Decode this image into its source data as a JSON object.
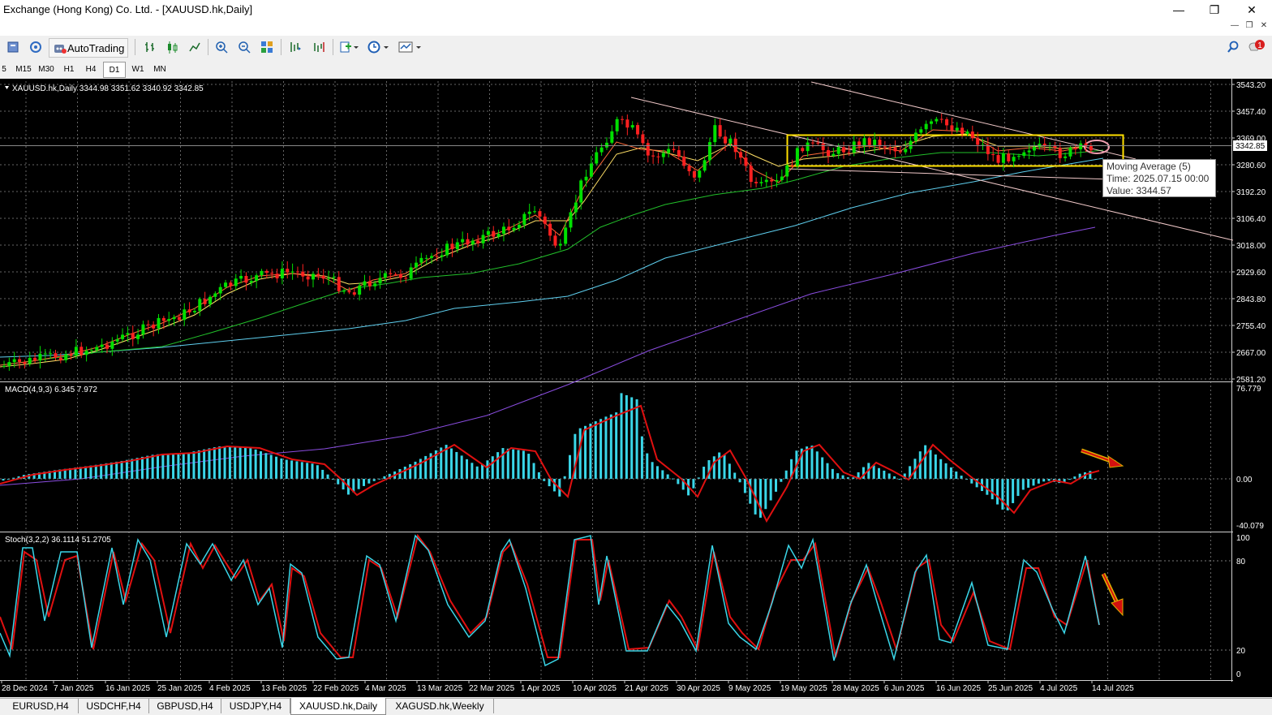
{
  "window": {
    "title": "Exchange (Hong Kong) Co. Ltd. - [XAUUSD.hk,Daily]",
    "minimize": "—",
    "restore": "❐",
    "close": "✕"
  },
  "toolbar": {
    "autotrading_label": "AutoTrading",
    "alert_count": "1"
  },
  "timeframes": [
    "5",
    "M15",
    "M30",
    "H1",
    "H4",
    "D1",
    "W1",
    "MN"
  ],
  "active_timeframe": "D1",
  "main_chart": {
    "header": "XAUUSD.hk,Daily  3344.98 3351.62 3340.92 3342.85",
    "current_price": "3342.85",
    "price_axis": [
      "3543.20",
      "3457.40",
      "3369.00",
      "3280.60",
      "3192.20",
      "3106.40",
      "3018.00",
      "2929.60",
      "2843.80",
      "2755.40",
      "2667.00",
      "2581.20"
    ]
  },
  "tooltip": {
    "line1": "Moving Average (5)",
    "line2": "Time: 2025.07.15 00:00",
    "line3": "Value: 3344.57"
  },
  "macd": {
    "header": "MACD(4,9,3) 6.345 7.972",
    "axis": [
      "76.779",
      "0.00",
      "-40.079"
    ]
  },
  "stoch": {
    "header": "Stoch(3,2,2) 36.1114 51.2705",
    "axis": [
      "100",
      "80",
      "20",
      "0"
    ]
  },
  "date_axis": [
    "28 Dec 2024",
    "7 Jan 2025",
    "16 Jan 2025",
    "25 Jan 2025",
    "4 Feb 2025",
    "13 Feb 2025",
    "22 Feb 2025",
    "4 Mar 2025",
    "13 Mar 2025",
    "22 Mar 2025",
    "1 Apr 2025",
    "10 Apr 2025",
    "21 Apr 2025",
    "30 Apr 2025",
    "9 May 2025",
    "19 May 2025",
    "28 May 2025",
    "6 Jun 2025",
    "16 Jun 2025",
    "25 Jun 2025",
    "4 Jul 2025",
    "14 Jul 2025"
  ],
  "tabs": [
    "EURUSD,H4",
    "USDCHF,H4",
    "GBPUSD,H4",
    "USDJPY,H4",
    "XAUUSD.hk,Daily",
    "XAGUSD.hk,Weekly"
  ],
  "active_tab": "XAUUSD.hk,Daily",
  "colors": {
    "bull": "#00e000",
    "bear": "#ff2020",
    "macd_hist": "#3ad6e8",
    "macd_signal": "#e01010",
    "ma5": "#ff6a3a",
    "ma10": "#ffe066",
    "ma30": "#22c02a",
    "ma60": "#5fd0f0",
    "ma120": "#8a4de0"
  }
}
